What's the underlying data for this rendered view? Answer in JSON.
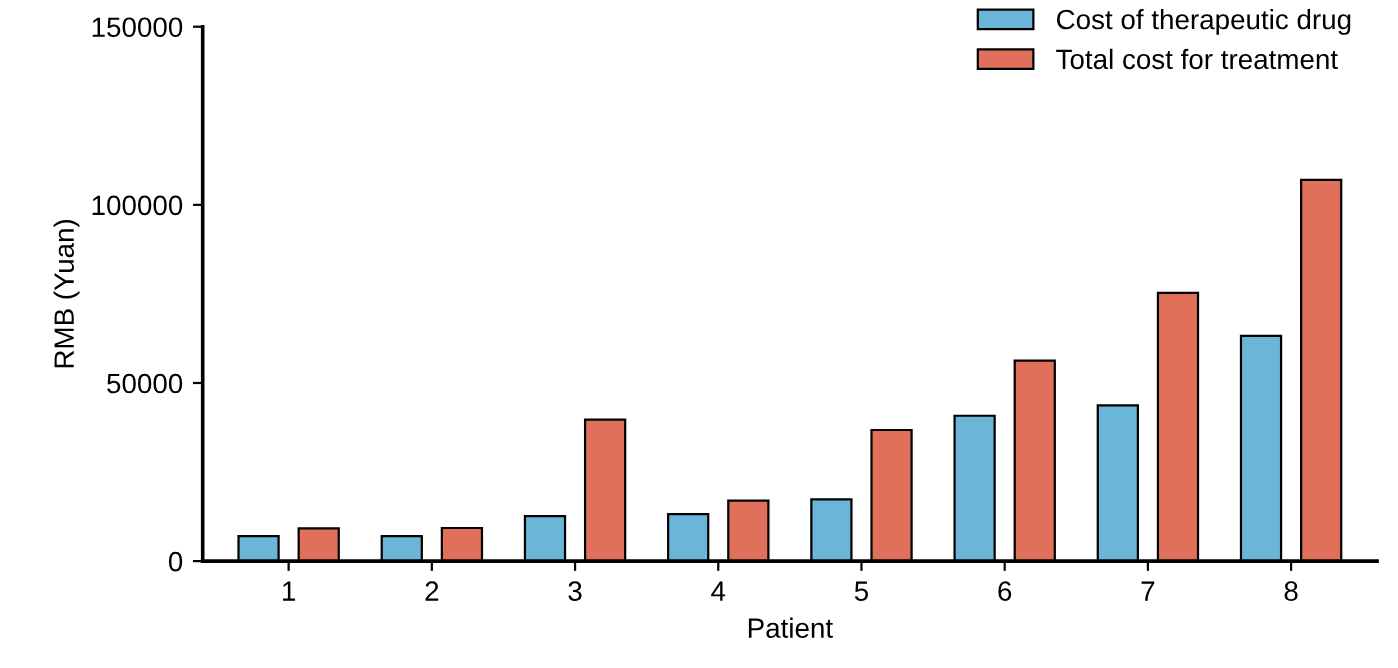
{
  "chart_data": {
    "type": "bar",
    "xlabel": "Patient",
    "ylabel": "RMB (Yuan)",
    "categories": [
      "1",
      "2",
      "3",
      "4",
      "5",
      "6",
      "7",
      "8"
    ],
    "series": [
      {
        "name": "Cost of therapeutic drug",
        "color": "#6bb5d8",
        "values": [
          7000,
          7000,
          12600,
          13200,
          17300,
          40800,
          43700,
          63200
        ]
      },
      {
        "name": "Total cost for treatment",
        "color": "#e0705a",
        "values": [
          9200,
          9300,
          39700,
          17000,
          36800,
          56300,
          75300,
          107000
        ]
      }
    ],
    "ylim": [
      0,
      150000
    ],
    "yticks": [
      0,
      50000,
      100000,
      150000
    ],
    "grid": false,
    "legend": "top right"
  }
}
